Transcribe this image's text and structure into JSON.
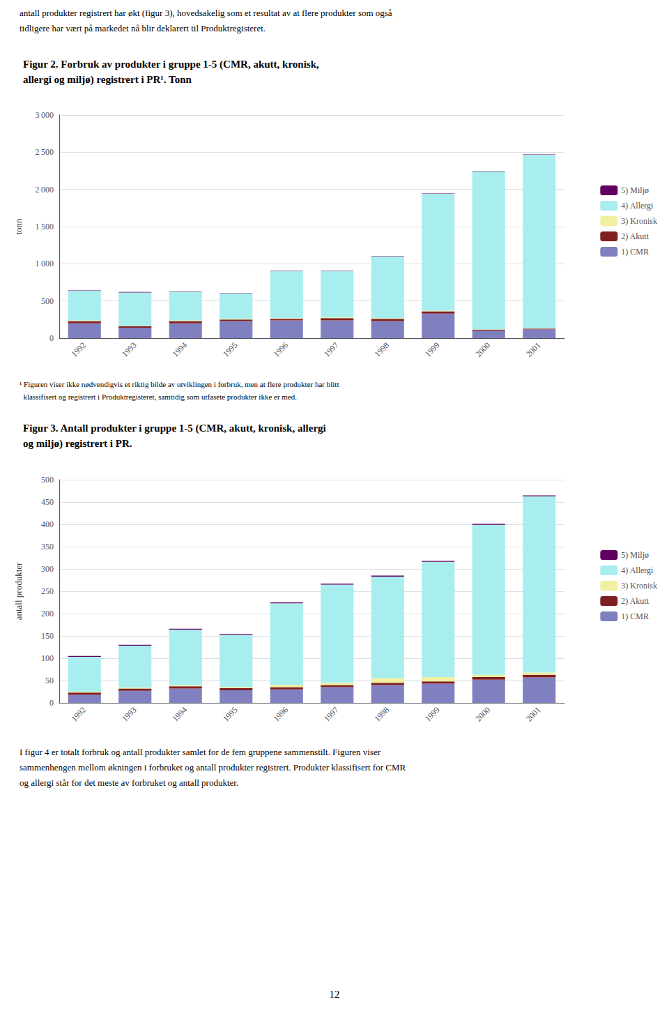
{
  "chart_data": [
    {
      "type": "bar",
      "stacked": true,
      "title": "Figur 2. Forbruk av produkter i gruppe 1-5 (CMR, akutt, kronisk,\nallergi og miljø) registrert i PR¹. Tonn",
      "categories": [
        "1992",
        "1993",
        "1994",
        "1995",
        "1996",
        "1997",
        "1998",
        "1999",
        "2000",
        "2001"
      ],
      "series": [
        {
          "name": "1) CMR",
          "color": "#8080C0",
          "values": [
            200,
            140,
            200,
            230,
            240,
            240,
            230,
            330,
            100,
            120
          ]
        },
        {
          "name": "2) Akutt",
          "color": "#802020",
          "values": [
            30,
            20,
            30,
            20,
            20,
            30,
            30,
            30,
            15,
            10
          ]
        },
        {
          "name": "3) Kronisk",
          "color": "#F0F0A0",
          "values": [
            10,
            5,
            10,
            10,
            10,
            10,
            10,
            10,
            5,
            5
          ]
        },
        {
          "name": "4) Allergi",
          "color": "#A8EEEE",
          "values": [
            400,
            450,
            380,
            340,
            630,
            620,
            830,
            1570,
            2120,
            2330
          ]
        },
        {
          "name": "5) Miljø",
          "color": "#600060",
          "values": [
            5,
            5,
            5,
            5,
            5,
            5,
            5,
            5,
            5,
            5
          ]
        }
      ],
      "ylabel": "tonn",
      "ylim": [
        0,
        3000
      ],
      "yticks": [
        0,
        500,
        {
          "value": 1000,
          "label": "1 000"
        },
        {
          "value": 1500,
          "label": "1 500"
        },
        {
          "value": 2000,
          "label": "2 000"
        },
        {
          "value": 2500,
          "label": "2 500"
        },
        {
          "value": 3000,
          "label": "3 000"
        }
      ],
      "grid": true,
      "legend": "right",
      "annotations": [
        "antall produkter registrert har økt (figur 3), hovedsakelig som et resultat av at flere produkter som også",
        "tidligere har vært på markedet nå blir deklarert til Produktregisteret.",
        "¹ Figuren viser ikke nødvendigvis et riktig bilde av utviklingen i forbruk, men at flere produkter har blitt",
        "  klassifisert og registrert i Produktregisteret, samtidig som utfasete produkter ikke er med."
      ]
    },
    {
      "type": "bar",
      "stacked": true,
      "title": "Figur 3. Antall produkter i gruppe 1-5 (CMR, akutt, kronisk, allergi\nog miljø) registrert i PR.",
      "categories": [
        "1992",
        "1993",
        "1994",
        "1995",
        "1996",
        "1997",
        "1998",
        "1999",
        "2000",
        "2001"
      ],
      "series": [
        {
          "name": "1) CMR",
          "color": "#8080C0",
          "values": [
            18,
            27,
            32,
            28,
            30,
            35,
            40,
            43,
            52,
            57
          ]
        },
        {
          "name": "2) Akutt",
          "color": "#802020",
          "values": [
            5,
            5,
            5,
            5,
            5,
            5,
            5,
            5,
            6,
            6
          ]
        },
        {
          "name": "3) Kronisk",
          "color": "#F0F0A0",
          "values": [
            2,
            2,
            2,
            2,
            5,
            5,
            10,
            10,
            5,
            5
          ]
        },
        {
          "name": "4) Allergi",
          "color": "#A8EEEE",
          "values": [
            78,
            94,
            125,
            117,
            183,
            220,
            228,
            258,
            336,
            395
          ]
        },
        {
          "name": "5) Miljø",
          "color": "#600060",
          "values": [
            2,
            2,
            2,
            2,
            2,
            2,
            2,
            2,
            2,
            2
          ]
        }
      ],
      "ylabel": "antall produkter",
      "ylim": [
        0,
        500
      ],
      "yticks": [
        0,
        50,
        100,
        150,
        200,
        250,
        300,
        350,
        400,
        450,
        500
      ],
      "grid": true,
      "legend": "right",
      "annotations": [
        "I figur 4 er totalt forbruk og antall produkter samlet for de fem gruppene sammenstilt. Figuren viser",
        "sammenhengen mellom økningen i forbruket og antall produkter registrert. Produkter klassifisert for CMR",
        "og allergi står for det meste av forbruket og antall produkter.",
        "12"
      ]
    }
  ]
}
